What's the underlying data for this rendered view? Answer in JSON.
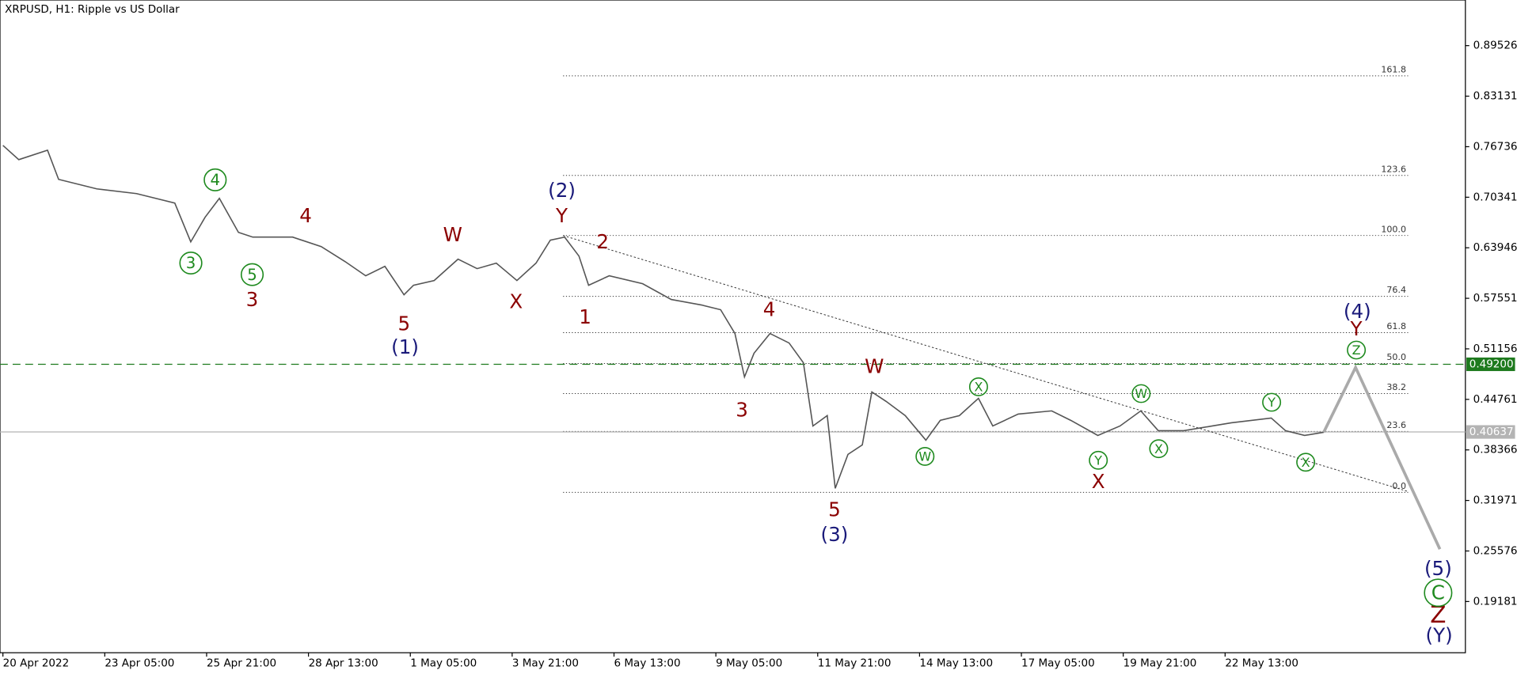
{
  "chart_data": {
    "type": "line",
    "title": "XRPUSD, H1:  Ripple vs US Dollar",
    "color": "#555555",
    "x": [
      0,
      10,
      28,
      35,
      59,
      84,
      108,
      118,
      127,
      136,
      148,
      157,
      182,
      200,
      215,
      228,
      240,
      252,
      258,
      271,
      286,
      298,
      310,
      323,
      335,
      344,
      353,
      362,
      368,
      381,
      402,
      420,
      439,
      451,
      460,
      466,
      472,
      482,
      494,
      503,
      509,
      518,
      523,
      531,
      540,
      546,
      555,
      567,
      580,
      589,
      601,
      613,
      622,
      638,
      659,
      671,
      688,
      702,
      715,
      726,
      742,
      760,
      772,
      797,
      806,
      818,
      830
    ],
    "values": [
      0.769,
      0.751,
      0.763,
      0.726,
      0.714,
      0.708,
      0.696,
      0.647,
      0.678,
      0.702,
      0.659,
      0.653,
      0.653,
      0.641,
      0.622,
      0.604,
      0.616,
      0.58,
      0.592,
      0.598,
      0.625,
      0.613,
      0.62,
      0.598,
      0.62,
      0.649,
      0.653,
      0.629,
      0.592,
      0.604,
      0.594,
      0.574,
      0.567,
      0.561,
      0.531,
      0.476,
      0.506,
      0.531,
      0.519,
      0.494,
      0.414,
      0.427,
      0.335,
      0.378,
      0.39,
      0.457,
      0.445,
      0.427,
      0.396,
      0.421,
      0.427,
      0.449,
      0.414,
      0.429,
      0.433,
      0.421,
      0.402,
      0.414,
      0.433,
      0.408,
      0.408,
      0.414,
      0.418,
      0.424,
      0.408,
      0.402,
      0.406
    ],
    "forecast": {
      "color": "#aaaaaa",
      "x": [
        830,
        850,
        903
      ],
      "values": [
        0.406,
        0.488,
        0.258
      ]
    },
    "trendline": {
      "x": [
        352,
        883
      ],
      "values": [
        0.655,
        0.331
      ]
    },
    "fib": {
      "x": [
        352,
        883
      ],
      "levels": [
        {
          "label": "161.8",
          "price": 0.857
        },
        {
          "label": "123.6",
          "price": 0.731
        },
        {
          "label": "100.0",
          "price": 0.655
        },
        {
          "label": "76.4",
          "price": 0.578
        },
        {
          "label": "61.8",
          "price": 0.532
        },
        {
          "label": "50.0",
          "price": 0.493
        },
        {
          "label": "38.2",
          "price": 0.455
        },
        {
          "label": "23.6",
          "price": 0.407
        },
        {
          "label": "0.0",
          "price": 0.33
        }
      ]
    },
    "hlines": [
      {
        "value": 0.492,
        "label": "0.49200",
        "color": "#1e7a1e"
      },
      {
        "value": 0.40637,
        "label": "0.40637",
        "color": "#b4b4b4"
      }
    ],
    "xlim": [
      0,
      919
    ],
    "ylim": [
      0.127,
      0.953
    ],
    "xticks": [
      {
        "value": 0,
        "label": "20 Apr 2022"
      },
      {
        "value": 64,
        "label": "23 Apr 05:00"
      },
      {
        "value": 128,
        "label": "25 Apr 21:00"
      },
      {
        "value": 192,
        "label": "28 Apr 13:00"
      },
      {
        "value": 256,
        "label": "1 May 05:00"
      },
      {
        "value": 320,
        "label": "3 May 21:00"
      },
      {
        "value": 384,
        "label": "6 May 13:00"
      },
      {
        "value": 448,
        "label": "9 May 05:00"
      },
      {
        "value": 512,
        "label": "11 May 21:00"
      },
      {
        "value": 576,
        "label": "14 May 13:00"
      },
      {
        "value": 640,
        "label": "17 May 05:00"
      },
      {
        "value": 704,
        "label": "19 May 21:00"
      },
      {
        "value": 768,
        "label": "22 May 13:00"
      }
    ],
    "yticks": [
      0.89526,
      0.83131,
      0.76736,
      0.70341,
      0.63946,
      0.57551,
      0.51156,
      0.44761,
      0.38366,
      0.31971,
      0.25576,
      0.19181
    ],
    "annotations": [
      "3",
      "4",
      "5",
      "3",
      "4",
      "W",
      "X",
      "5",
      "Y",
      "2",
      "1",
      "4",
      "3",
      "W",
      "5",
      "X",
      "Y",
      "Z",
      "(1)",
      "(2)",
      "(3)",
      "(4)",
      "(5)",
      "(Y)",
      "W",
      "X",
      "Y",
      "W",
      "X",
      "Y",
      "X",
      "Z",
      "C"
    ]
  }
}
